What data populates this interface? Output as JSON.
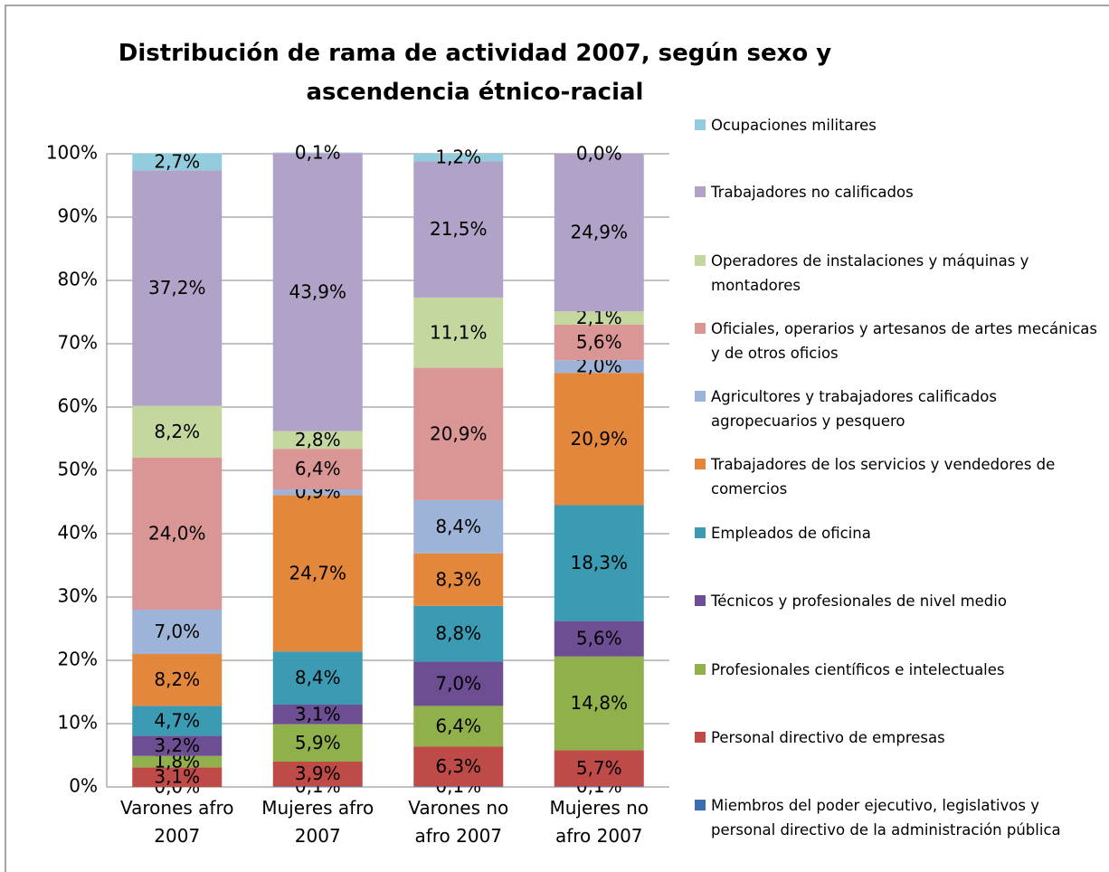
{
  "chart_data": {
    "type": "stacked_bar",
    "title": "Distribución de rama de actividad 2007, según sexo y ascendencia étnico-racial",
    "categories": [
      "Varones afro 2007",
      "Mujeres afro 2007",
      "Varones no afro 2007",
      "Mujeres no afro 2007"
    ],
    "ylim": [
      0,
      100
    ],
    "yticks": [
      {
        "value": 0,
        "label": "0%"
      },
      {
        "value": 10,
        "label": "10%"
      },
      {
        "value": 20,
        "label": "20%"
      },
      {
        "value": 30,
        "label": "30%"
      },
      {
        "value": 40,
        "label": "40%"
      },
      {
        "value": 50,
        "label": "50%"
      },
      {
        "value": 60,
        "label": "60%"
      },
      {
        "value": 70,
        "label": "70%"
      },
      {
        "value": 80,
        "label": "80%"
      },
      {
        "value": 90,
        "label": "90%"
      },
      {
        "value": 100,
        "label": "100%"
      }
    ],
    "grid": true,
    "legend": "right",
    "series": [
      {
        "name": "Miembros del poder ejecutivo, legislativos y personal directivo de la administración pública",
        "color": "#3d6db0",
        "values": [
          0.0,
          0.1,
          0.1,
          0.1
        ],
        "value_labels": [
          "0,0%",
          "0,1%",
          "0,1%",
          "0,1%"
        ]
      },
      {
        "name": "Personal directivo de empresas",
        "color": "#be4b48",
        "values": [
          3.1,
          3.9,
          6.3,
          5.7
        ],
        "value_labels": [
          "3,1%",
          "3,9%",
          "6,3%",
          "5,7%"
        ]
      },
      {
        "name": "Profesionales científicos e intelectuales",
        "color": "#8fb04a",
        "values": [
          1.8,
          5.9,
          6.4,
          14.8
        ],
        "value_labels": [
          "1,8%",
          "5,9%",
          "6,4%",
          "14,8%"
        ]
      },
      {
        "name": "Técnicos y profesionales de nivel medio",
        "color": "#6e4e93",
        "values": [
          3.2,
          3.1,
          7.0,
          5.6
        ],
        "value_labels": [
          "3,2%",
          "3,1%",
          "7,0%",
          "5,6%"
        ]
      },
      {
        "name": "Empleados de oficina",
        "color": "#3a9bb3",
        "values": [
          4.7,
          8.4,
          8.8,
          18.3
        ],
        "value_labels": [
          "4,7%",
          "8,4%",
          "8,8%",
          "18,3%"
        ]
      },
      {
        "name": "Trabajadores de los servicios y vendedores de comercios",
        "color": "#e3873c",
        "values": [
          8.2,
          24.7,
          8.3,
          20.9
        ],
        "value_labels": [
          "8,2%",
          "24,7%",
          "8,3%",
          "20,9%"
        ]
      },
      {
        "name": "Agricultores y trabajadores calificados agropecuarios y pesquero",
        "color": "#9db4d8",
        "values": [
          7.0,
          0.9,
          8.4,
          2.0
        ],
        "value_labels": [
          "7,0%",
          "0,9%",
          "8,4%",
          "2,0%"
        ]
      },
      {
        "name": "Oficiales, operarios y artesanos de artes mecánicas y de otros oficios",
        "color": "#d99694",
        "values": [
          24.0,
          6.4,
          20.9,
          5.6
        ],
        "value_labels": [
          "24,0%",
          "6,4%",
          "20,9%",
          "5,6%"
        ]
      },
      {
        "name": "Operadores de instalaciones y máquinas y montadores",
        "color": "#c4d79f",
        "values": [
          8.2,
          2.8,
          11.1,
          2.1
        ],
        "value_labels": [
          "8,2%",
          "2,8%",
          "11,1%",
          "2,1%"
        ]
      },
      {
        "name": "Trabajadores no calificados",
        "color": "#b1a2c8",
        "values": [
          37.2,
          43.9,
          21.5,
          24.9
        ],
        "value_labels": [
          "37,2%",
          "43,9%",
          "21,5%",
          "24,9%"
        ]
      },
      {
        "name": "Ocupaciones militares",
        "color": "#93cddd",
        "values": [
          2.7,
          0.1,
          1.2,
          0.0
        ],
        "value_labels": [
          "2,7%",
          "0,1%",
          "1,2%",
          "0,0%"
        ]
      }
    ]
  }
}
